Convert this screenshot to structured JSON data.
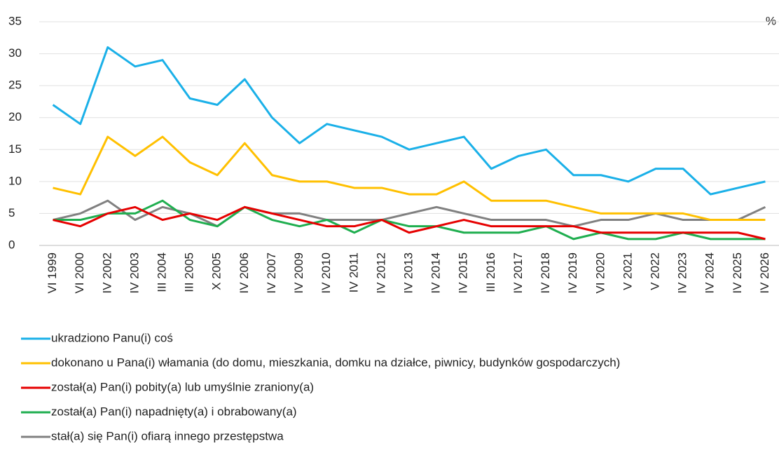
{
  "chart_data": {
    "type": "line",
    "unit": "%",
    "categories": [
      "VI 1999",
      "VI 2000",
      "IV 2002",
      "IV 2003",
      "III 2004",
      "III 2005",
      "X 2005",
      "IV 2006",
      "IV 2007",
      "IV 2009",
      "IV 2010",
      "IV 2011",
      "IV 2012",
      "IV 2013",
      "IV 2014",
      "IV 2015",
      "III 2016",
      "IV 2017",
      "IV 2018",
      "IV 2019",
      "VI 2020",
      "V 2021",
      "V 2022",
      "IV 2023",
      "IV 2024",
      "IV 2025",
      "IV 2026"
    ],
    "series": [
      {
        "name": "ukradziono Panu(i) coś",
        "color": "#1ab0e8",
        "values": [
          22,
          19,
          31,
          28,
          29,
          23,
          22,
          26,
          20,
          16,
          19,
          18,
          17,
          15,
          16,
          17,
          12,
          14,
          15,
          11,
          11,
          10,
          12,
          12,
          8,
          9,
          10
        ]
      },
      {
        "name": "dokonano u Pana(i) włamania (do domu, mieszkania, domku na działce, piwnicy, budynków gospodarczych)",
        "color": "#ffc000",
        "values": [
          9,
          8,
          17,
          14,
          17,
          13,
          11,
          16,
          11,
          10,
          10,
          9,
          9,
          8,
          8,
          10,
          7,
          7,
          7,
          6,
          5,
          5,
          5,
          5,
          4,
          4,
          4
        ]
      },
      {
        "name": "został(a) Pan(i) pobity(a) lub umyślnie zraniony(a)",
        "color": "#e60000",
        "values": [
          4,
          3,
          5,
          6,
          4,
          5,
          4,
          6,
          5,
          4,
          3,
          3,
          4,
          2,
          3,
          4,
          3,
          3,
          3,
          3,
          2,
          2,
          2,
          2,
          2,
          2,
          1
        ]
      },
      {
        "name": "został(a) Pan(i) napadnięty(a) i obrabowany(a)",
        "color": "#1fae4f",
        "values": [
          4,
          4,
          5,
          5,
          7,
          4,
          3,
          6,
          4,
          3,
          4,
          2,
          4,
          3,
          3,
          2,
          2,
          2,
          3,
          1,
          2,
          1,
          1,
          2,
          1,
          1,
          1
        ]
      },
      {
        "name": "stał(a) się Pan(i) ofiarą innego przestępstwa",
        "color": "#808080",
        "values": [
          4,
          5,
          7,
          4,
          6,
          5,
          3,
          6,
          5,
          5,
          4,
          4,
          4,
          5,
          6,
          5,
          4,
          4,
          4,
          3,
          4,
          4,
          5,
          4,
          4,
          4,
          6
        ]
      }
    ],
    "ylim": [
      0,
      35
    ],
    "yticks": [
      0,
      5,
      10,
      15,
      20,
      25,
      30,
      35
    ],
    "grid": true
  }
}
